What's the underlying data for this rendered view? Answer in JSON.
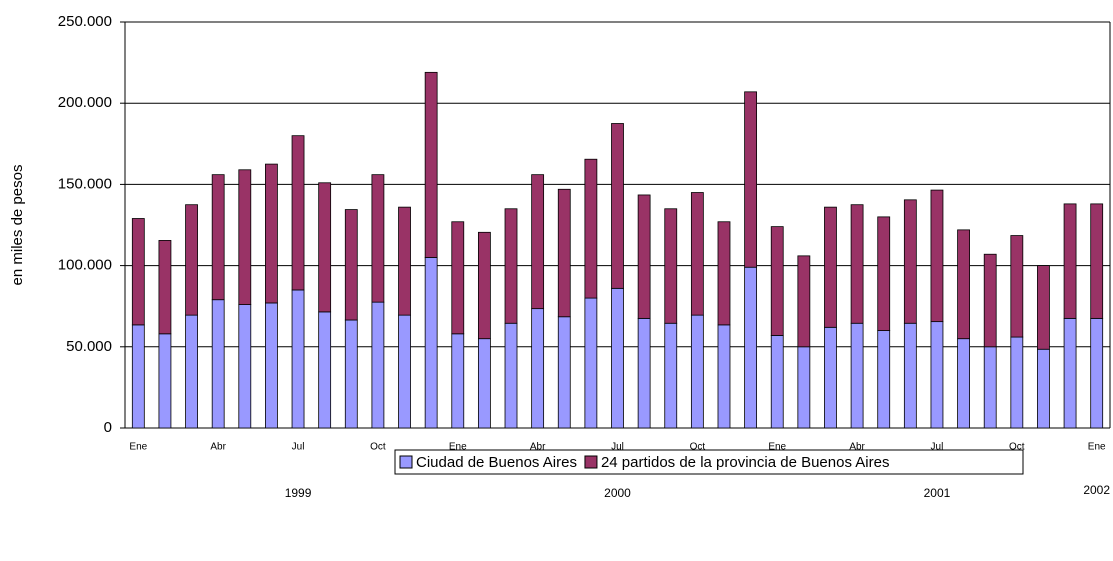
{
  "chart_data": {
    "type": "stacked-bar",
    "y_label": "en miles de pesos",
    "categories": [
      "Ene",
      null,
      null,
      "Abr",
      null,
      null,
      "Jul",
      null,
      null,
      "Oct",
      null,
      null,
      "Ene",
      null,
      null,
      "Abr",
      null,
      null,
      "Jul",
      null,
      null,
      "Oct",
      null,
      null,
      "Ene",
      null,
      null,
      "Abr",
      null,
      null,
      "Jul",
      null,
      null,
      "Oct",
      null,
      null,
      "Ene"
    ],
    "year_labels": [
      "1999",
      "2000",
      "2001",
      "2002"
    ],
    "series": [
      {
        "name": "Ciudad de Buenos Aires",
        "color": "#9999ff",
        "values": [
          63500,
          58000,
          69500,
          79000,
          76000,
          77000,
          85000,
          71500,
          66500,
          77500,
          69500,
          105000,
          58000,
          55000,
          64500,
          73500,
          68500,
          80000,
          86000,
          67500,
          64500,
          69500,
          63500,
          99000,
          57000,
          50000,
          62000,
          64500,
          60000,
          64500,
          65500,
          55000,
          50000,
          56000,
          48500,
          67500,
          67500
        ]
      },
      {
        "name": "24 partidos de la provincia de Buenos Aires",
        "color": "#993366",
        "values": [
          65500,
          57500,
          68000,
          77000,
          83000,
          85500,
          95000,
          79500,
          68000,
          78500,
          66500,
          114000,
          69000,
          65500,
          70500,
          82500,
          78500,
          85500,
          101500,
          76000,
          70500,
          75500,
          63500,
          108000,
          67000,
          56000,
          74000,
          73000,
          70000,
          76000,
          81000,
          67000,
          57000,
          62500,
          51500,
          70500,
          70500
        ]
      }
    ],
    "ylim": [
      0,
      250000
    ],
    "yticks": [
      0,
      {
        "value": 50000,
        "label": "50.000"
      },
      {
        "value": 100000,
        "label": "100.000"
      },
      {
        "value": 150000,
        "label": "150.000"
      },
      {
        "value": 200000,
        "label": "200.000"
      },
      {
        "value": 250000,
        "label": "250.000"
      }
    ],
    "grid": true
  }
}
